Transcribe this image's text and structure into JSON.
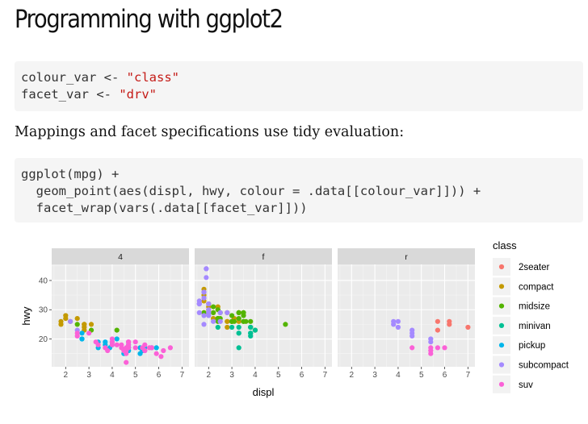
{
  "page": {
    "title": "Programming with ggplot2",
    "code_block_1": [
      {
        "pre": "colour_var <- ",
        "str": "\"class\""
      },
      {
        "pre": "facet_var <- ",
        "str": "\"drv\""
      }
    ],
    "paragraph": "Mappings and facet specifications use tidy evaluation:",
    "code_block_2": [
      "ggplot(mpg) +",
      "  geom_point(aes(displ, hwy, colour = .data[[colour_var]])) +",
      "  facet_wrap(vars(.data[[facet_var]]))"
    ]
  },
  "chart_data": {
    "type": "scatter",
    "xlabel": "displ",
    "ylabel": "hwy",
    "xlim": [
      1.4,
      7.3
    ],
    "ylim": [
      10.5,
      45.5
    ],
    "x_ticks": [
      2,
      3,
      4,
      5,
      6,
      7
    ],
    "y_ticks": [
      20,
      30,
      40
    ],
    "facets": [
      "4",
      "f",
      "r"
    ],
    "legend": {
      "title": "class",
      "position": "right",
      "entries": [
        {
          "label": "2seater",
          "color": "#F8766D"
        },
        {
          "label": "compact",
          "color": "#C49A00"
        },
        {
          "label": "midsize",
          "color": "#53B400"
        },
        {
          "label": "minivan",
          "color": "#00C094"
        },
        {
          "label": "pickup",
          "color": "#00B6EB"
        },
        {
          "label": "subcompact",
          "color": "#A58AFF"
        },
        {
          "label": "suv",
          "color": "#FB61D7"
        }
      ]
    },
    "points": {
      "4": {
        "compact": [
          [
            1.8,
            26
          ],
          [
            1.8,
            25
          ],
          [
            2.0,
            28
          ],
          [
            2.0,
            27
          ],
          [
            2.8,
            25
          ],
          [
            2.8,
            25
          ],
          [
            3.1,
            25
          ],
          [
            2.8,
            23
          ],
          [
            2.8,
            24
          ],
          [
            2.2,
            26
          ],
          [
            2.5,
            27
          ]
        ],
        "midsize": [
          [
            4.2,
            23
          ],
          [
            2.5,
            25
          ],
          [
            3.1,
            23
          ]
        ],
        "pickup": [
          [
            3.7,
            19
          ],
          [
            3.7,
            18
          ],
          [
            3.9,
            17
          ],
          [
            4.7,
            17
          ],
          [
            4.7,
            17
          ],
          [
            4.7,
            16
          ],
          [
            5.2,
            17
          ],
          [
            5.2,
            15
          ],
          [
            4.7,
            17
          ],
          [
            5.7,
            17
          ],
          [
            5.9,
            17
          ],
          [
            4.7,
            16
          ],
          [
            2.7,
            20
          ],
          [
            2.7,
            22
          ],
          [
            3.4,
            17
          ],
          [
            4.0,
            18
          ],
          [
            4.0,
            19
          ],
          [
            4.5,
            15
          ],
          [
            5.4,
            17
          ],
          [
            4.2,
            20
          ],
          [
            3.4,
            19
          ],
          [
            2.7,
            20
          ],
          [
            4.7,
            18
          ],
          [
            5.3,
            16
          ]
        ],
        "subcompact": [
          [
            2.2,
            26
          ],
          [
            2.5,
            23
          ]
        ],
        "suv": [
          [
            5.7,
            17
          ],
          [
            6.5,
            17
          ],
          [
            4.6,
            15
          ],
          [
            5.4,
            16
          ],
          [
            4.7,
            17
          ],
          [
            3.0,
            22
          ],
          [
            4.4,
            18
          ],
          [
            5.4,
            18
          ],
          [
            4.0,
            19
          ],
          [
            4.2,
            18
          ],
          [
            3.3,
            19
          ],
          [
            4.6,
            12
          ],
          [
            4.6,
            16
          ],
          [
            5.4,
            16
          ],
          [
            5.9,
            15
          ],
          [
            4.0,
            20
          ],
          [
            4.7,
            19
          ],
          [
            4.7,
            18
          ],
          [
            6.1,
            14
          ],
          [
            5.0,
            17
          ],
          [
            4.4,
            17
          ],
          [
            3.8,
            16
          ],
          [
            2.5,
            22
          ],
          [
            2.5,
            21
          ],
          [
            4.5,
            16
          ],
          [
            6.2,
            16
          ],
          [
            5.6,
            17
          ],
          [
            4.7,
            19
          ],
          [
            3.7,
            17
          ],
          [
            4.7,
            19
          ],
          [
            3.4,
            18
          ],
          [
            4.6,
            17
          ],
          [
            4.0,
            18
          ],
          [
            5.0,
            19
          ],
          [
            5.3,
            17
          ]
        ]
      },
      "f": {
        "compact": [
          [
            1.8,
            29
          ],
          [
            1.8,
            29
          ],
          [
            2.0,
            31
          ],
          [
            2.0,
            30
          ],
          [
            2.8,
            26
          ],
          [
            2.8,
            26
          ],
          [
            3.1,
            27
          ],
          [
            1.8,
            35
          ],
          [
            1.8,
            37
          ],
          [
            2.0,
            29
          ],
          [
            2.0,
            29
          ],
          [
            2.0,
            29
          ],
          [
            2.4,
            27
          ],
          [
            2.4,
            30
          ],
          [
            3.0,
            26
          ],
          [
            3.3,
            29
          ],
          [
            3.3,
            26
          ],
          [
            1.8,
            33
          ],
          [
            2.2,
            27
          ],
          [
            2.2,
            29
          ],
          [
            2.4,
            27
          ],
          [
            2.4,
            31
          ],
          [
            3.0,
            26
          ],
          [
            2.0,
            32
          ],
          [
            2.0,
            29
          ],
          [
            2.8,
            29
          ],
          [
            2.8,
            24
          ],
          [
            3.0,
            26
          ]
        ],
        "midsize": [
          [
            2.4,
            27
          ],
          [
            2.4,
            30
          ],
          [
            3.1,
            26
          ],
          [
            3.5,
            29
          ],
          [
            3.6,
            26
          ],
          [
            3.3,
            29
          ],
          [
            3.8,
            26
          ],
          [
            2.5,
            29
          ],
          [
            3.0,
            26
          ],
          [
            3.5,
            28
          ],
          [
            2.4,
            26
          ],
          [
            3.0,
            28
          ],
          [
            3.3,
            27
          ],
          [
            2.2,
            31
          ],
          [
            2.2,
            29
          ],
          [
            2.4,
            27
          ],
          [
            3.0,
            26
          ],
          [
            3.5,
            26
          ],
          [
            2.5,
            27
          ],
          [
            3.8,
            24
          ],
          [
            4.0,
            23
          ],
          [
            5.3,
            25
          ],
          [
            1.8,
            29
          ],
          [
            2.0,
            29
          ],
          [
            3.3,
            29
          ],
          [
            3.5,
            29
          ],
          [
            3.5,
            26
          ]
        ],
        "minivan": [
          [
            2.4,
            24
          ],
          [
            3.0,
            24
          ],
          [
            3.3,
            22
          ],
          [
            3.3,
            22
          ],
          [
            3.3,
            24
          ],
          [
            3.8,
            22
          ],
          [
            3.8,
            21
          ],
          [
            3.8,
            22
          ],
          [
            4.0,
            23
          ],
          [
            3.3,
            17
          ],
          [
            3.8,
            24
          ]
        ],
        "subcompact": [
          [
            1.6,
            33
          ],
          [
            1.6,
            32
          ],
          [
            1.6,
            32
          ],
          [
            1.6,
            29
          ],
          [
            1.6,
            32
          ],
          [
            1.8,
            34
          ],
          [
            1.8,
            36
          ],
          [
            1.8,
            36
          ],
          [
            2.0,
            29
          ],
          [
            1.9,
            44
          ],
          [
            1.9,
            44
          ],
          [
            1.9,
            41
          ],
          [
            2.0,
            28
          ],
          [
            2.5,
            26
          ],
          [
            2.5,
            29
          ],
          [
            2.2,
            26
          ],
          [
            2.5,
            26
          ],
          [
            1.8,
            28
          ],
          [
            1.8,
            25
          ],
          [
            2.0,
            30
          ],
          [
            2.0,
            29
          ],
          [
            2.0,
            32
          ],
          [
            2.8,
            29
          ]
        ]
      },
      "r": {
        "2seater": [
          [
            5.7,
            26
          ],
          [
            5.7,
            23
          ],
          [
            6.2,
            26
          ],
          [
            6.2,
            25
          ],
          [
            7.0,
            24
          ]
        ],
        "subcompact": [
          [
            3.8,
            26
          ],
          [
            3.8,
            25
          ],
          [
            4.0,
            26
          ],
          [
            4.0,
            24
          ],
          [
            4.6,
            21
          ],
          [
            4.6,
            22
          ],
          [
            4.6,
            23
          ],
          [
            5.4,
            20
          ],
          [
            5.4,
            19
          ]
        ],
        "suv": [
          [
            4.6,
            17
          ],
          [
            5.4,
            15
          ],
          [
            5.4,
            17
          ],
          [
            5.4,
            16
          ],
          [
            5.7,
            17
          ],
          [
            6.0,
            17
          ]
        ]
      }
    }
  }
}
